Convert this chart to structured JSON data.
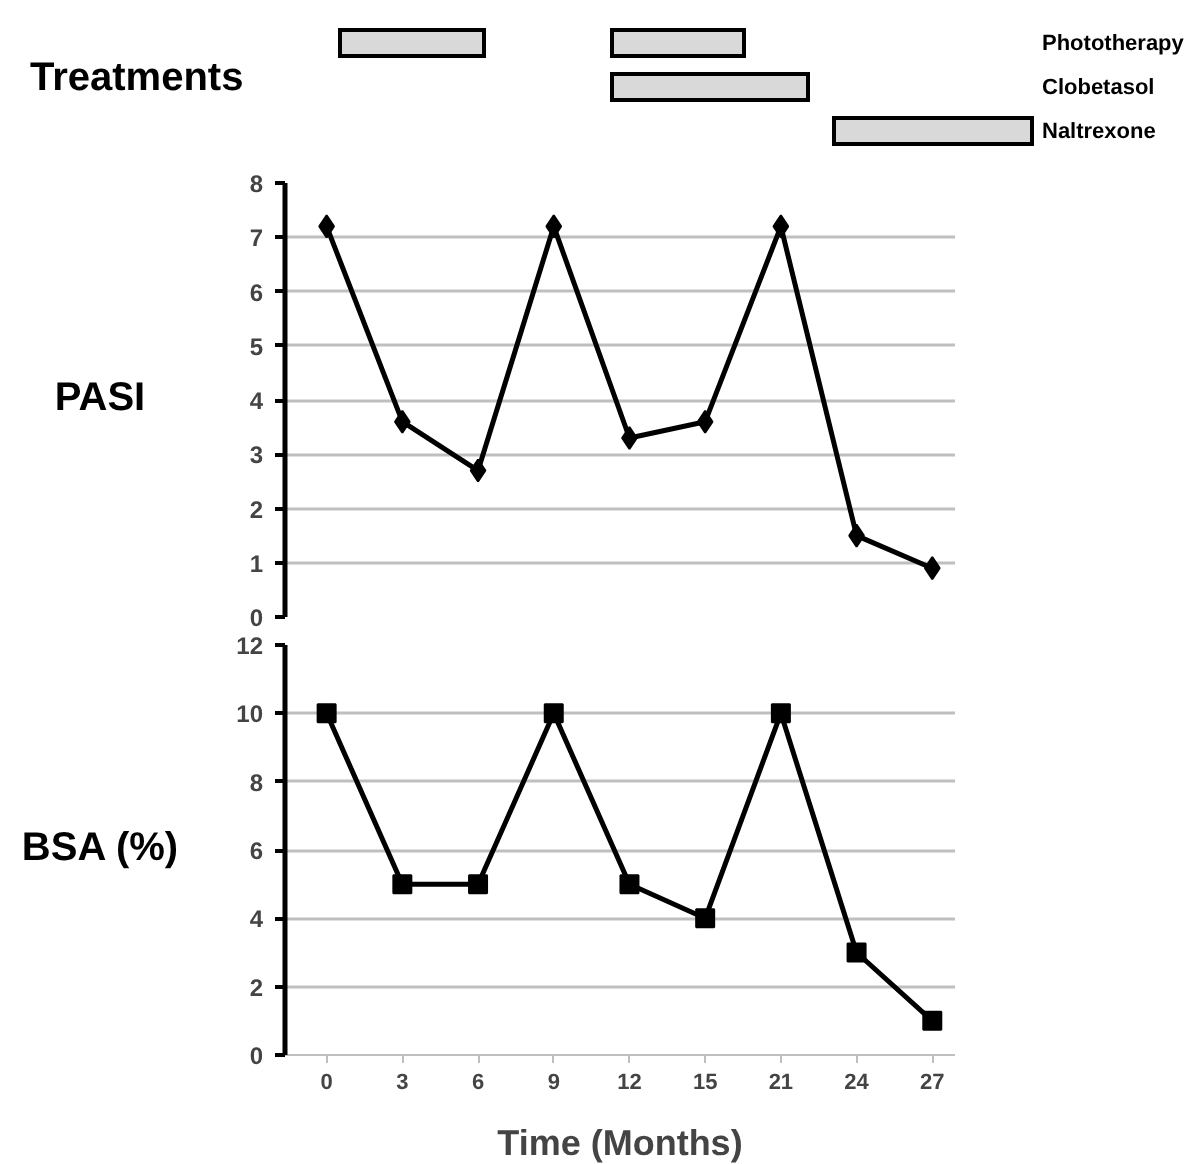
{
  "chart_data": [
    {
      "type": "other",
      "ylabel": "Treatments",
      "categories": [
        "Phototherapy",
        "Clobetasol",
        "Naltrexone"
      ]
    },
    {
      "type": "line",
      "ylabel": "PASI",
      "categories": [
        "0",
        "3",
        "6",
        "9",
        "12",
        "15",
        "21",
        "24",
        "27"
      ],
      "ylim": [
        0,
        8
      ],
      "yticks": [
        0,
        1,
        2,
        3,
        4,
        5,
        6,
        7,
        8
      ],
      "grid": "y",
      "marker": "diamond",
      "tick_labels": "y",
      "series": [
        {
          "color": "#000000",
          "values": [
            7.2,
            3.6,
            2.7,
            7.2,
            3.3,
            3.6,
            7.2,
            1.5,
            0.9
          ]
        }
      ]
    },
    {
      "type": "line",
      "ylabel": "BSA (%)",
      "xlabel": "Time (Months)",
      "categories": [
        "0",
        "3",
        "6",
        "9",
        "12",
        "15",
        "21",
        "24",
        "27"
      ],
      "ylim": [
        0,
        12
      ],
      "yticks": [
        0,
        2,
        4,
        6,
        8,
        10,
        12
      ],
      "grid": "y",
      "marker": "square",
      "series": [
        {
          "color": "#000000",
          "values": [
            10,
            5,
            5,
            10,
            5,
            4,
            10,
            3,
            1
          ]
        }
      ]
    }
  ]
}
